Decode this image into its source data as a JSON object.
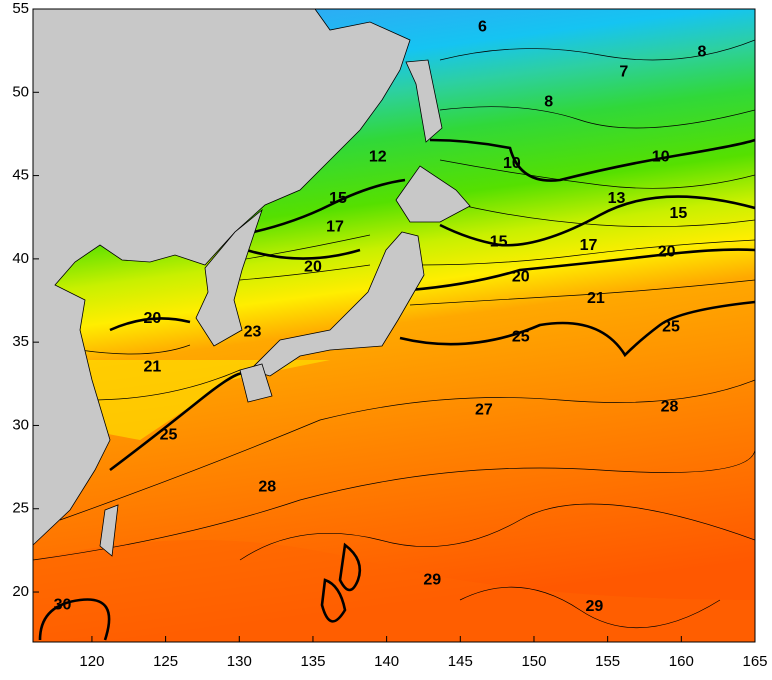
{
  "map": {
    "xlim": [
      116,
      165
    ],
    "ylim": [
      17,
      55
    ],
    "xticks": [
      120,
      125,
      130,
      135,
      140,
      145,
      150,
      155,
      160,
      165
    ],
    "yticks": [
      20,
      25,
      30,
      35,
      40,
      45,
      50,
      55
    ],
    "contour_labels": [
      {
        "value": 6,
        "lon": 146.5,
        "lat": 53.9
      },
      {
        "value": 8,
        "lon": 161.4,
        "lat": 52.4
      },
      {
        "value": 7,
        "lon": 156.1,
        "lat": 51.2
      },
      {
        "value": 8,
        "lon": 151.0,
        "lat": 49.4
      },
      {
        "value": 12,
        "lon": 139.4,
        "lat": 46.1
      },
      {
        "value": 10,
        "lon": 148.5,
        "lat": 45.7
      },
      {
        "value": 10,
        "lon": 158.6,
        "lat": 46.1
      },
      {
        "value": 15,
        "lon": 136.7,
        "lat": 43.6
      },
      {
        "value": 13,
        "lon": 155.6,
        "lat": 43.6
      },
      {
        "value": 15,
        "lon": 159.8,
        "lat": 42.7
      },
      {
        "value": 17,
        "lon": 136.5,
        "lat": 41.9
      },
      {
        "value": 15,
        "lon": 147.6,
        "lat": 41.0
      },
      {
        "value": 17,
        "lon": 153.7,
        "lat": 40.8
      },
      {
        "value": 20,
        "lon": 135.0,
        "lat": 39.5
      },
      {
        "value": 20,
        "lon": 159.0,
        "lat": 40.4
      },
      {
        "value": 20,
        "lon": 149.1,
        "lat": 38.9
      },
      {
        "value": 21,
        "lon": 154.2,
        "lat": 37.6
      },
      {
        "value": 20,
        "lon": 124.1,
        "lat": 36.4
      },
      {
        "value": 23,
        "lon": 130.9,
        "lat": 35.6
      },
      {
        "value": 25,
        "lon": 149.1,
        "lat": 35.3
      },
      {
        "value": 25,
        "lon": 159.3,
        "lat": 35.9
      },
      {
        "value": 21,
        "lon": 124.1,
        "lat": 33.5
      },
      {
        "value": 25,
        "lon": 125.2,
        "lat": 29.4
      },
      {
        "value": 27,
        "lon": 146.6,
        "lat": 30.9
      },
      {
        "value": 28,
        "lon": 159.2,
        "lat": 31.1
      },
      {
        "value": 28,
        "lon": 131.9,
        "lat": 26.3
      },
      {
        "value": 29,
        "lon": 143.1,
        "lat": 20.7
      },
      {
        "value": 29,
        "lon": 154.1,
        "lat": 19.1
      },
      {
        "value": 30,
        "lon": 118.0,
        "lat": 19.2
      }
    ]
  }
}
